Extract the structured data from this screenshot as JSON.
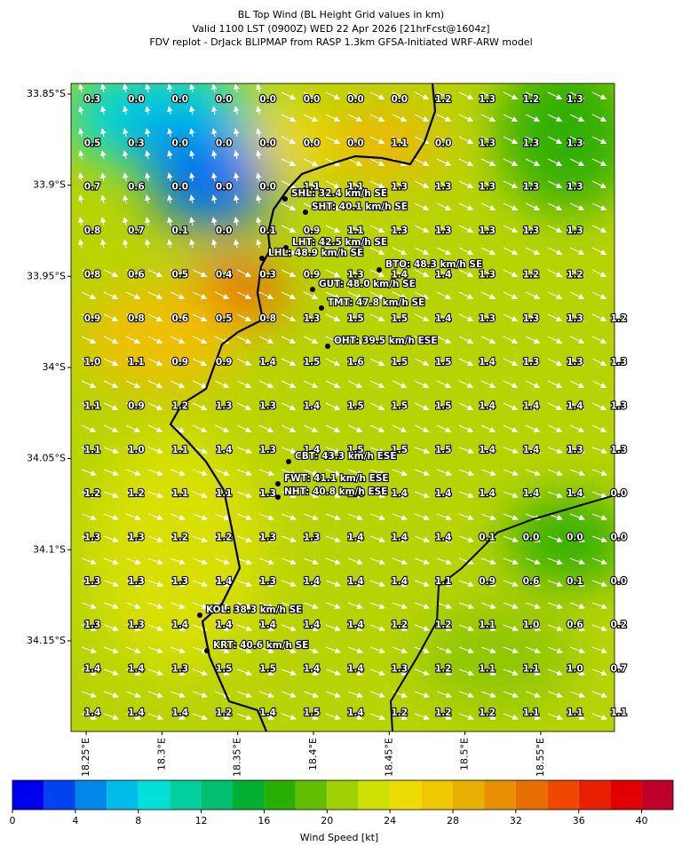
{
  "title": [
    "BL Top Wind (BL Height Grid values in km)",
    "Valid 1100 LST (0900Z) WED 22 Apr 2026 [21hrFcst@1604z]",
    "FDV replot - DrJack BLIPMAP from RASP 1.3km GFSA-Initiated WRF-ARW model"
  ],
  "map": {
    "xlim": [
      18.24,
      18.5987
    ],
    "ylim": [
      -34.1997,
      -33.8442
    ],
    "xticks": [
      {
        "value": 18.25,
        "label": "18.25°E"
      },
      {
        "value": 18.3,
        "label": "18.3°E"
      },
      {
        "value": 18.35,
        "label": "18.35°E"
      },
      {
        "value": 18.4,
        "label": "18.4°E"
      },
      {
        "value": 18.45,
        "label": "18.45°E"
      },
      {
        "value": 18.5,
        "label": "18.5°E"
      },
      {
        "value": 18.55,
        "label": "18.55°E"
      }
    ],
    "yticks": [
      {
        "value": -33.85,
        "label": "33.85°S"
      },
      {
        "value": -33.9,
        "label": "33.9°S"
      },
      {
        "value": -33.95,
        "label": "33.95°S"
      },
      {
        "value": -34,
        "label": "34°S"
      },
      {
        "value": -34.05,
        "label": "34.05°S"
      },
      {
        "value": -34.1,
        "label": "34.1°S"
      },
      {
        "value": -34.15,
        "label": "34.15°S"
      }
    ],
    "grid_values": [
      [
        "0.3",
        "0.0",
        "0.0",
        "0.0",
        "0.0",
        "0.0",
        "0.0",
        "0.0",
        "1.2",
        "1.3",
        "1.2",
        "1.3",
        null
      ],
      [
        "0.5",
        "0.3",
        "0.0",
        "0.0",
        "0.0",
        "0.0",
        "0.0",
        "1.1",
        "0.0",
        "1.3",
        "1.3",
        "1.3",
        null
      ],
      [
        "0.7",
        "0.6",
        "0.0",
        "0.0",
        "0.0",
        "1.1",
        "1.1",
        "1.3",
        "1.3",
        "1.3",
        "1.3",
        "1.3",
        null
      ],
      [
        "0.8",
        "0.7",
        "0.1",
        "0.0",
        "0.1",
        "0.9",
        "1.1",
        "1.3",
        "1.3",
        "1.3",
        "1.3",
        "1.3",
        null
      ],
      [
        "0.8",
        "0.6",
        "0.5",
        "0.4",
        "0.3",
        "0.9",
        "1.3",
        "1.4",
        "1.4",
        "1.3",
        "1.2",
        "1.2",
        null
      ],
      [
        "0.9",
        "0.8",
        "0.6",
        "0.5",
        "0.8",
        "1.3",
        "1.5",
        "1.5",
        "1.4",
        "1.3",
        "1.3",
        "1.3",
        "1.2"
      ],
      [
        "1.0",
        "1.1",
        "0.9",
        "0.9",
        "1.4",
        "1.5",
        "1.6",
        "1.5",
        "1.5",
        "1.4",
        "1.3",
        "1.3",
        "1.3"
      ],
      [
        "1.1",
        "0.9",
        "1.2",
        "1.3",
        "1.3",
        "1.4",
        "1.5",
        "1.5",
        "1.5",
        "1.4",
        "1.4",
        "1.4",
        "1.3"
      ],
      [
        "1.1",
        "1.0",
        "1.1",
        "1.4",
        "1.3",
        "1.4",
        "1.5",
        "1.5",
        "1.5",
        "1.4",
        "1.4",
        "1.3",
        "1.3"
      ],
      [
        "1.2",
        "1.2",
        "1.1",
        "1.1",
        "1.3",
        null,
        "1.4",
        "1.4",
        "1.4",
        "1.4",
        "1.4",
        "1.4",
        "0.0"
      ],
      [
        "1.3",
        "1.3",
        "1.2",
        "1.2",
        "1.3",
        "1.3",
        "1.4",
        "1.4",
        "1.4",
        "0.1",
        "0.0",
        "0.0",
        "0.0"
      ],
      [
        "1.3",
        "1.3",
        "1.3",
        "1.4",
        "1.3",
        "1.4",
        "1.4",
        "1.4",
        "1.1",
        "0.9",
        "0.6",
        "0.1",
        "0.0"
      ],
      [
        "1.3",
        "1.3",
        "1.4",
        "1.4",
        "1.4",
        "1.4",
        "1.4",
        "1.2",
        "1.2",
        "1.1",
        "1.0",
        "0.6",
        "0.2"
      ],
      [
        "1.4",
        "1.4",
        "1.3",
        "1.5",
        "1.5",
        "1.4",
        "1.4",
        "1.3",
        "1.2",
        "1.1",
        "1.1",
        "1.0",
        "0.7"
      ],
      [
        "1.4",
        "1.4",
        "1.4",
        "1.2",
        "1.4",
        "1.5",
        "1.4",
        "1.2",
        "1.2",
        "1.2",
        "1.1",
        "1.1",
        "1.1"
      ]
    ],
    "stations": [
      "SHL: 32.4 km/h SE",
      "SHT: 40.1 km/h SE",
      "LHT: 42.5 km/h SE",
      "LHL: 48.9 km/h SE",
      "BTO: 48.3 km/h SE",
      "GUT: 48.0 km/h SE",
      "TMT: 47.8 km/h SE",
      "OHT: 39.5 km/h ESE",
      "CBT: 43.3 km/h ESE",
      "FWT: 41.1 km/h ESE",
      "NHT: 40.8 km/h ESE",
      "KOL: 38.3 km/h SE",
      "KRT: 40.6 km/h SE"
    ]
  },
  "colorbar": {
    "label": "Wind Speed [kt]",
    "bins": [
      0,
      2,
      4,
      6,
      8,
      10,
      12,
      14,
      16,
      18,
      20,
      22,
      24,
      26,
      28,
      30,
      32,
      34,
      36,
      38,
      40,
      42
    ],
    "colors": [
      "#0000f0",
      "#0044f0",
      "#0088e8",
      "#00bce8",
      "#00e0d8",
      "#00d0a0",
      "#00c070",
      "#00b030",
      "#28b000",
      "#60c000",
      "#a0d000",
      "#d0e000",
      "#ecdc00",
      "#f0c800",
      "#e8b000",
      "#e89000",
      "#e87000",
      "#f04800",
      "#e82000",
      "#e00000",
      "#c00028"
    ],
    "ticks": [
      0,
      4,
      8,
      12,
      16,
      20,
      24,
      28,
      32,
      36,
      40
    ]
  }
}
